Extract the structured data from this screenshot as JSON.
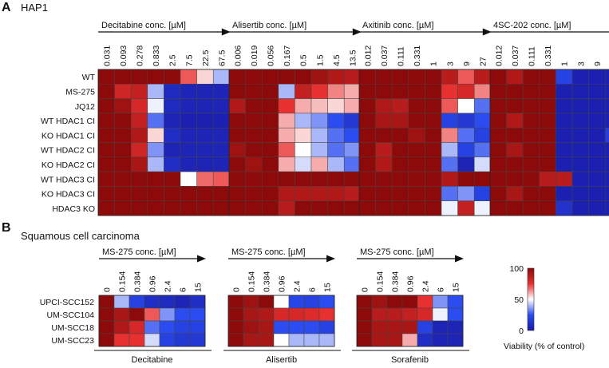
{
  "panel_a": {
    "letter": "A",
    "title": "HAP1",
    "rows": [
      "WT",
      "MS-275",
      "JQ12",
      "WT HDAC1 CI",
      "KO HDAC1 CI",
      "WT HDAC2 CI",
      "KO HDAC2 CI",
      "WT HDAC3 CI",
      "KO HDAC3 CI",
      "HDAC3 KO"
    ]
  },
  "panel_b": {
    "letter": "B",
    "title": "Squamous cell carcinoma",
    "rows": [
      "UPCI-SCC152",
      "UM-SCC104",
      "UM-SCC18",
      "UM-SCC23"
    ]
  },
  "colorbar": {
    "max_label": "100",
    "mid_label": "50",
    "min_label": "0",
    "label": "Viability (% of control)",
    "colors": {
      "low": "#1a1aa8",
      "mid_low": "#2a4cf0",
      "mid": "#ffffff",
      "mid_high": "#e83030",
      "high": "#8c0a0a"
    }
  },
  "chart_data": [
    {
      "type": "heatmap",
      "title": "Decitabine conc. [µM]",
      "panel": "A",
      "columns": [
        "0.031",
        "0.093",
        "0.278",
        "0.833",
        "2.5",
        "7.5",
        "22.5",
        "67.5"
      ],
      "rows": [
        "WT",
        "MS-275",
        "JQ12",
        "WT HDAC1 CI",
        "KO HDAC1 CI",
        "WT HDAC2 CI",
        "KO HDAC2 CI",
        "WT HDAC3 CI",
        "KO HDAC3 CI",
        "HDAC3 KO"
      ],
      "values": [
        [
          100,
          100,
          100,
          100,
          100,
          70,
          55,
          40
        ],
        [
          100,
          82,
          85,
          40,
          8,
          5,
          5,
          5
        ],
        [
          100,
          95,
          80,
          48,
          8,
          5,
          5,
          5
        ],
        [
          100,
          100,
          85,
          30,
          5,
          3,
          3,
          3
        ],
        [
          100,
          100,
          90,
          55,
          10,
          5,
          5,
          5
        ],
        [
          100,
          100,
          82,
          35,
          5,
          5,
          5,
          5
        ],
        [
          100,
          100,
          92,
          40,
          10,
          5,
          5,
          5
        ],
        [
          100,
          100,
          100,
          100,
          100,
          50,
          68,
          70
        ],
        [
          100,
          100,
          100,
          100,
          100,
          100,
          100,
          100
        ],
        [
          100,
          100,
          100,
          100,
          100,
          100,
          100,
          100
        ]
      ],
      "zlim": [
        0,
        100
      ]
    },
    {
      "type": "heatmap",
      "title": "Alisertib conc. [µM]",
      "panel": "A",
      "columns": [
        "0.006",
        "0.019",
        "0.056",
        "0.167",
        "0.5",
        "1.5",
        "4.5",
        "13.5"
      ],
      "rows": [
        "WT",
        "MS-275",
        "JQ12",
        "WT HDAC1 CI",
        "KO HDAC1 CI",
        "WT HDAC2 CI",
        "KO HDAC2 CI",
        "WT HDAC3 CI",
        "KO HDAC3 CI",
        "HDAC3 KO"
      ],
      "values": [
        [
          100,
          100,
          100,
          100,
          100,
          95,
          90,
          88
        ],
        [
          100,
          100,
          100,
          40,
          85,
          75,
          65,
          60
        ],
        [
          90,
          100,
          100,
          75,
          60,
          58,
          55,
          60
        ],
        [
          100,
          100,
          100,
          60,
          40,
          35,
          25,
          15
        ],
        [
          100,
          100,
          100,
          60,
          55,
          40,
          30,
          25
        ],
        [
          95,
          100,
          100,
          70,
          50,
          40,
          30,
          35
        ],
        [
          100,
          95,
          100,
          60,
          45,
          60,
          40,
          30
        ],
        [
          100,
          100,
          100,
          100,
          100,
          100,
          100,
          100
        ],
        [
          100,
          100,
          100,
          90,
          90,
          90,
          90,
          88
        ],
        [
          100,
          100,
          100,
          88,
          100,
          100,
          100,
          100
        ]
      ],
      "zlim": [
        0,
        100
      ]
    },
    {
      "type": "heatmap",
      "title": "Axitinib conc. [µM]",
      "panel": "A",
      "columns": [
        "0.012",
        "0.037",
        "0.111",
        "0.331",
        "1",
        "3",
        "9",
        "27"
      ],
      "rows": [
        "WT",
        "MS-275",
        "JQ12",
        "WT HDAC1 CI",
        "KO HDAC1 CI",
        "WT HDAC2 CI",
        "KO HDAC2 CI",
        "WT HDAC3 CI",
        "KO HDAC3 CI",
        "HDAC3 KO"
      ],
      "values": [
        [
          100,
          100,
          100,
          100,
          100,
          88,
          70,
          88
        ],
        [
          100,
          100,
          100,
          100,
          100,
          75,
          80,
          65
        ],
        [
          100,
          90,
          88,
          100,
          100,
          70,
          50,
          30
        ],
        [
          100,
          92,
          92,
          100,
          100,
          20,
          15,
          25
        ],
        [
          100,
          100,
          100,
          95,
          100,
          65,
          30,
          20
        ],
        [
          100,
          88,
          100,
          100,
          100,
          40,
          20,
          30
        ],
        [
          100,
          90,
          100,
          100,
          100,
          30,
          5,
          45
        ],
        [
          100,
          100,
          100,
          100,
          100,
          90,
          100,
          100
        ],
        [
          100,
          100,
          100,
          100,
          100,
          30,
          35,
          20
        ],
        [
          100,
          100,
          100,
          100,
          100,
          48,
          85,
          48
        ]
      ],
      "zlim": [
        0,
        100
      ]
    },
    {
      "type": "heatmap",
      "title": "4SC-202 conc. [µM]",
      "panel": "A",
      "columns": [
        "0.012",
        "0.037",
        "0.111",
        "0.331",
        "1",
        "3",
        "9",
        "27"
      ],
      "rows": [
        "WT",
        "MS-275",
        "JQ12",
        "WT HDAC1 CI",
        "KO HDAC1 CI",
        "WT HDAC2 CI",
        "KO HDAC2 CI",
        "WT HDAC3 CI",
        "KO HDAC3 CI",
        "HDAC3 KO"
      ],
      "values": [
        [
          100,
          90,
          100,
          100,
          20,
          3,
          3,
          3
        ],
        [
          100,
          100,
          100,
          100,
          3,
          3,
          3,
          3
        ],
        [
          100,
          100,
          100,
          100,
          3,
          3,
          3,
          3
        ],
        [
          100,
          90,
          100,
          100,
          3,
          3,
          3,
          3
        ],
        [
          100,
          100,
          100,
          100,
          3,
          3,
          3,
          18
        ],
        [
          100,
          92,
          100,
          100,
          3,
          3,
          3,
          3
        ],
        [
          100,
          100,
          100,
          100,
          3,
          3,
          3,
          3
        ],
        [
          100,
          100,
          100,
          88,
          88,
          3,
          3,
          3
        ],
        [
          100,
          92,
          100,
          100,
          3,
          3,
          3,
          3
        ],
        [
          100,
          100,
          100,
          100,
          12,
          3,
          3,
          3
        ]
      ],
      "zlim": [
        0,
        100
      ]
    },
    {
      "type": "heatmap",
      "title": "MS-275 conc. [µM]",
      "panel": "B",
      "drug": "Decitabine",
      "columns": [
        "0",
        "0.154",
        "0.384",
        "0.96",
        "2.4",
        "6",
        "15"
      ],
      "rows": [
        "UPCI-SCC152",
        "UM-SCC104",
        "UM-SCC18",
        "UM-SCC23"
      ],
      "values": [
        [
          100,
          40,
          20,
          10,
          8,
          5,
          10
        ],
        [
          100,
          92,
          100,
          70,
          35,
          25,
          25
        ],
        [
          100,
          90,
          80,
          30,
          25,
          20,
          20
        ],
        [
          100,
          75,
          75,
          45,
          20,
          15,
          15
        ]
      ],
      "zlim": [
        0,
        100
      ]
    },
    {
      "type": "heatmap",
      "title": "MS-275 conc. [µM]",
      "panel": "B",
      "drug": "Alisertib",
      "columns": [
        "0",
        "0.154",
        "0.384",
        "0.96",
        "2.4",
        "6",
        "15"
      ],
      "rows": [
        "UPCI-SCC152",
        "UM-SCC104",
        "UM-SCC18",
        "UM-SCC23"
      ],
      "values": [
        [
          100,
          95,
          100,
          50,
          22,
          20,
          25
        ],
        [
          100,
          92,
          90,
          80,
          80,
          78,
          75
        ],
        [
          100,
          95,
          92,
          25,
          25,
          25,
          20
        ],
        [
          100,
          92,
          92,
          50,
          40,
          40,
          40
        ]
      ],
      "zlim": [
        0,
        100
      ]
    },
    {
      "type": "heatmap",
      "title": "MS-275 conc. [µM]",
      "panel": "B",
      "drug": "Sorafenib",
      "columns": [
        "0",
        "0.154",
        "0.384",
        "0.96",
        "2.4",
        "6",
        "15"
      ],
      "rows": [
        "UPCI-SCC152",
        "UM-SCC104",
        "UM-SCC18",
        "UM-SCC23"
      ],
      "values": [
        [
          100,
          95,
          100,
          100,
          75,
          35,
          25
        ],
        [
          100,
          88,
          88,
          85,
          80,
          48,
          25
        ],
        [
          100,
          92,
          92,
          92,
          20,
          5,
          5
        ],
        [
          100,
          92,
          92,
          60,
          10,
          5,
          5
        ]
      ],
      "zlim": [
        0,
        100
      ]
    }
  ]
}
